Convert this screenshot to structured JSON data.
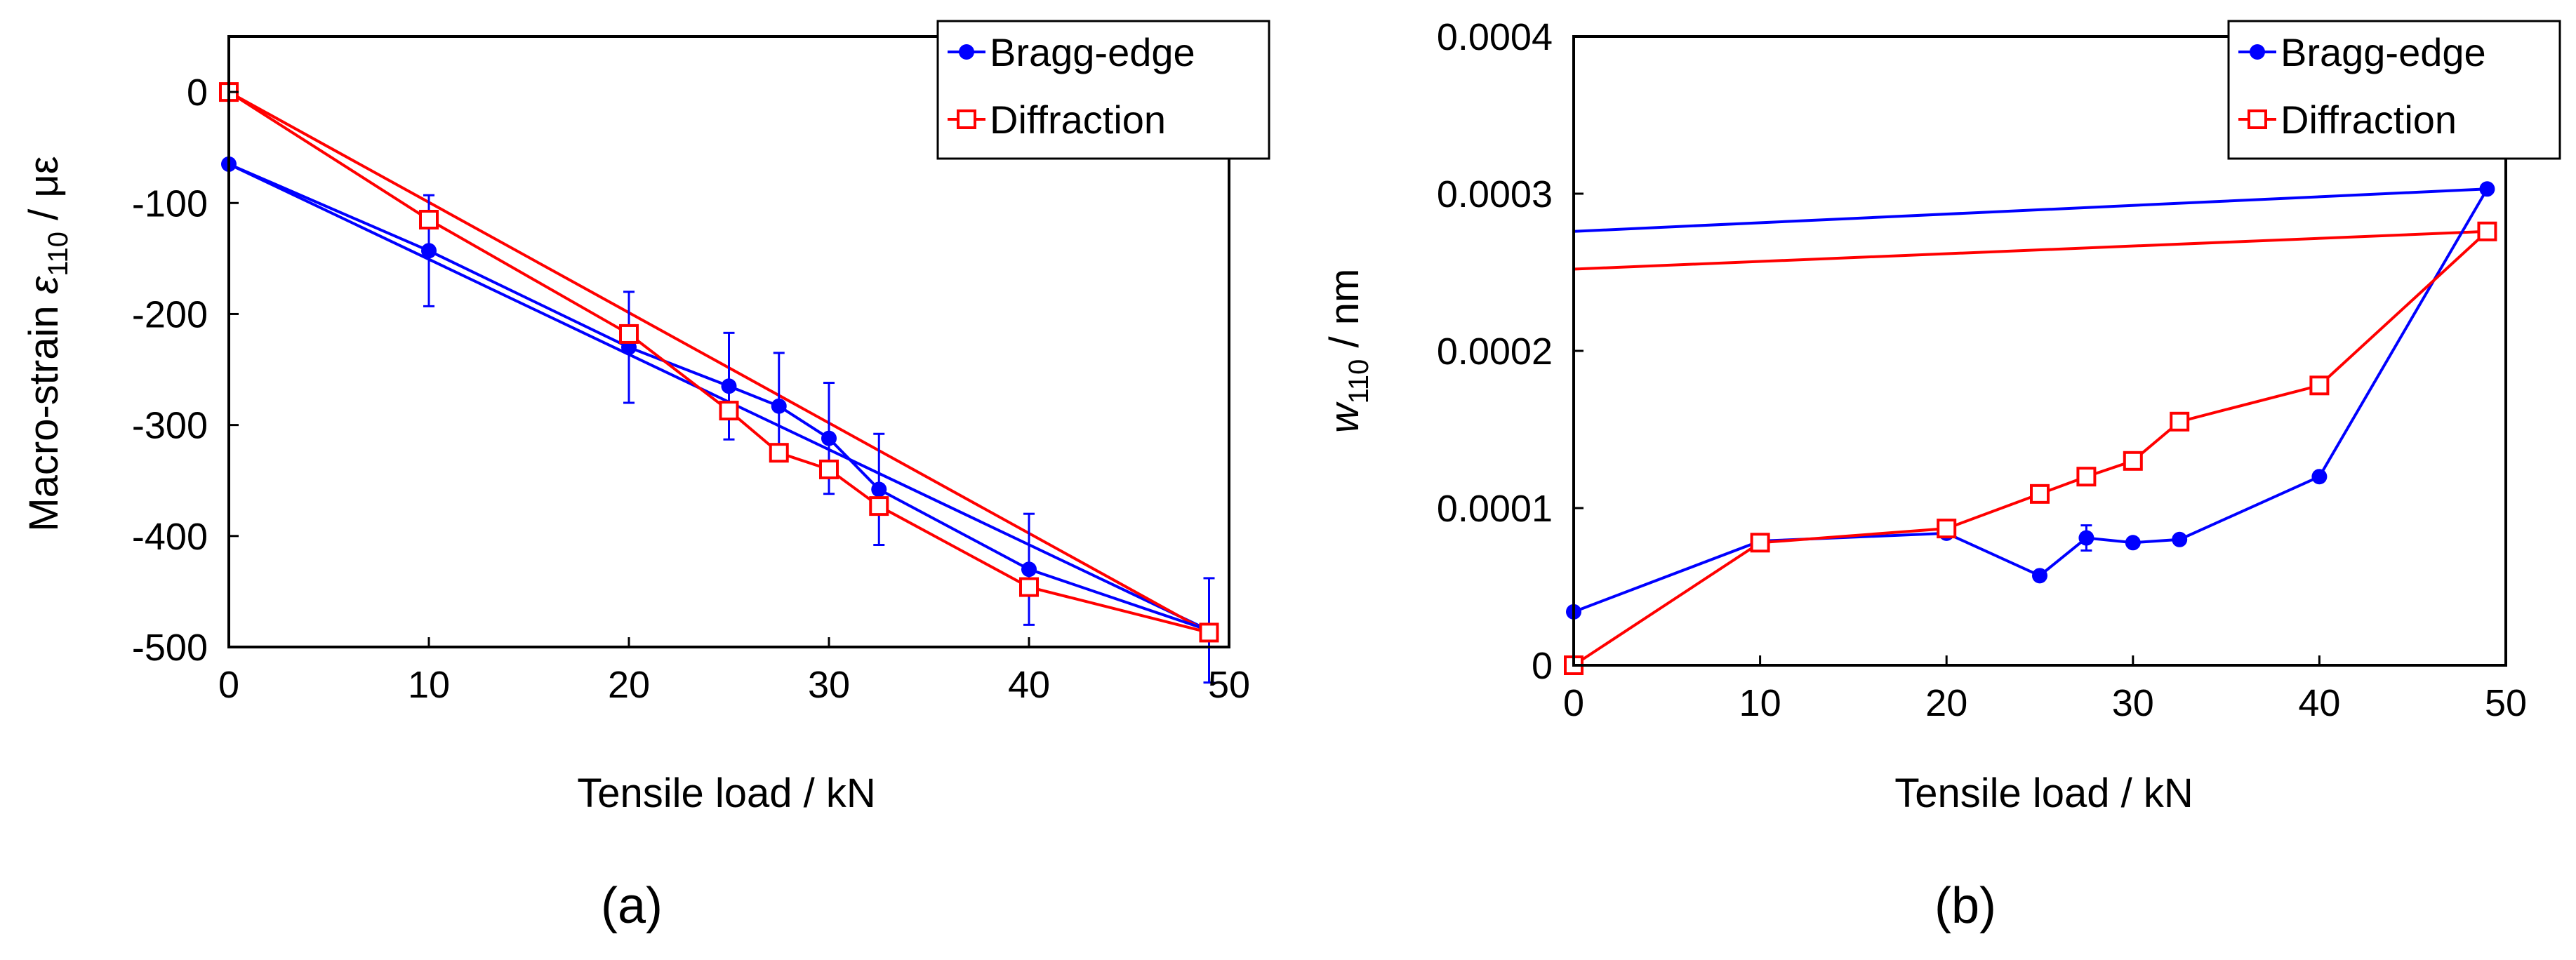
{
  "chart_data": [
    {
      "type": "line",
      "panel_label": "(a)",
      "xlabel": "Tensile load / kN",
      "ylabel": {
        "prefix": "Macro-strain ",
        "symbol": "ε",
        "sub": "110",
        "suffix": " / με"
      },
      "xlim": [
        0,
        50
      ],
      "ylim": [
        -500,
        50
      ],
      "xticks": [
        0,
        10,
        20,
        30,
        40,
        50
      ],
      "yticks": [
        0,
        -100,
        -200,
        -300,
        -400,
        -500
      ],
      "legend": {
        "position": "top-right",
        "entries": [
          "Bragg-edge",
          "Diffraction"
        ]
      },
      "series": [
        {
          "name": "Bragg-edge",
          "color": "#0000ff",
          "marker": "filled-circle",
          "x": [
            0,
            10,
            20,
            25,
            27.5,
            30,
            32.5,
            40,
            49
          ],
          "y": [
            -65,
            -143,
            -230,
            -265,
            -283,
            -312,
            -358,
            -430,
            -485
          ],
          "err": [
            0,
            50,
            50,
            48,
            48,
            50,
            50,
            50,
            47
          ]
        },
        {
          "name": "Diffraction",
          "color": "#ff0000",
          "marker": "open-square",
          "x": [
            0,
            10,
            20,
            25,
            27.5,
            30,
            32.5,
            40,
            49
          ],
          "y": [
            0,
            -115,
            -218,
            -287,
            -325,
            -340,
            -373,
            -446,
            -487
          ]
        }
      ],
      "fit_lines": [
        {
          "series": "Bragg-edge",
          "color": "#0000ff",
          "x": [
            0,
            49
          ],
          "y": [
            -65,
            -485
          ]
        },
        {
          "series": "Diffraction",
          "color": "#ff0000",
          "x": [
            0,
            49
          ],
          "y": [
            0,
            -487
          ]
        }
      ]
    },
    {
      "type": "line",
      "panel_label": "(b)",
      "xlabel": "Tensile load / kN",
      "ylabel": {
        "symbol": "w",
        "sub": "110",
        "suffix": " / nm"
      },
      "xlim": [
        0,
        50
      ],
      "ylim": [
        0,
        0.0004
      ],
      "xticks": [
        0,
        10,
        20,
        30,
        40,
        50
      ],
      "yticks": [
        0,
        0.0001,
        0.0002,
        0.0003,
        0.0004
      ],
      "ytick_labels": [
        "0",
        "0.0001",
        "0.0002",
        "0.0003",
        "0.0004"
      ],
      "legend": {
        "position": "top-right",
        "entries": [
          "Bragg-edge",
          "Diffraction"
        ]
      },
      "series": [
        {
          "name": "Bragg-edge",
          "color": "#0000ff",
          "marker": "filled-circle",
          "x": [
            0,
            10,
            20,
            25,
            27.5,
            30,
            32.5,
            40,
            49
          ],
          "y": [
            3.4e-05,
            7.9e-05,
            8.4e-05,
            5.7e-05,
            8.1e-05,
            7.8e-05,
            8e-05,
            0.00012,
            0.000303
          ],
          "err": [
            0,
            0,
            0,
            0,
            8e-06,
            0,
            0,
            0,
            0
          ]
        },
        {
          "name": "Diffraction",
          "color": "#ff0000",
          "marker": "open-square",
          "x": [
            0,
            10,
            20,
            25,
            27.5,
            30,
            32.5,
            40,
            49
          ],
          "y": [
            0,
            7.8e-05,
            8.7e-05,
            0.000109,
            0.00012,
            0.00013,
            0.000155,
            0.000178,
            0.000276
          ]
        }
      ],
      "fit_lines": [
        {
          "series": "Bragg-edge",
          "color": "#0000ff",
          "x": [
            0,
            49
          ],
          "y": [
            0.000276,
            0.000303
          ]
        },
        {
          "series": "Diffraction",
          "color": "#ff0000",
          "x": [
            0,
            49
          ],
          "y": [
            0.000252,
            0.000276
          ]
        }
      ]
    }
  ]
}
